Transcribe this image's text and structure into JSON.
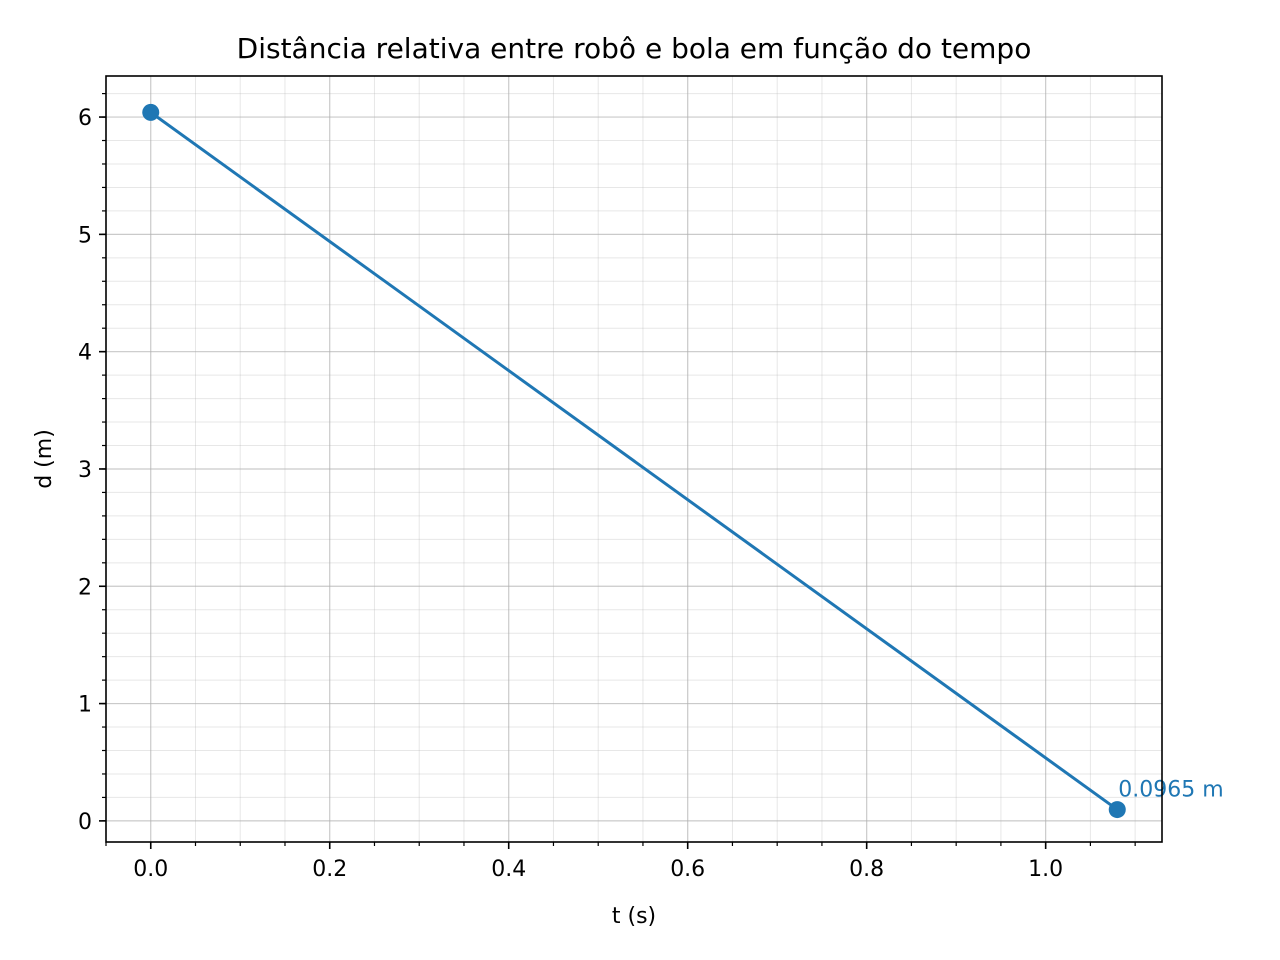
{
  "chart_data": {
    "type": "line",
    "title": "Distância relativa entre robô e bola em função do tempo",
    "xlabel": "t (s)",
    "ylabel": "d (m)",
    "xlim": [
      -0.05,
      1.13
    ],
    "ylim": [
      -0.18,
      6.35
    ],
    "xticks": [
      0.0,
      0.2,
      0.4,
      0.6,
      0.8,
      1.0
    ],
    "xtick_labels": [
      "0.0",
      "0.2",
      "0.4",
      "0.6",
      "0.8",
      "1.0"
    ],
    "yticks": [
      0,
      1,
      2,
      3,
      4,
      5,
      6
    ],
    "ytick_labels": [
      "0",
      "1",
      "2",
      "3",
      "4",
      "5",
      "6"
    ],
    "grid": true,
    "minor_grid": true,
    "series": [
      {
        "color": "#1f77b4",
        "x": [
          0.0,
          1.08
        ],
        "y": [
          6.04,
          0.0965
        ],
        "markers": true
      }
    ],
    "annotations": [
      {
        "text": "0.0965 m",
        "x": 1.08,
        "y": 0.0965,
        "color": "#1f77b4"
      }
    ]
  }
}
